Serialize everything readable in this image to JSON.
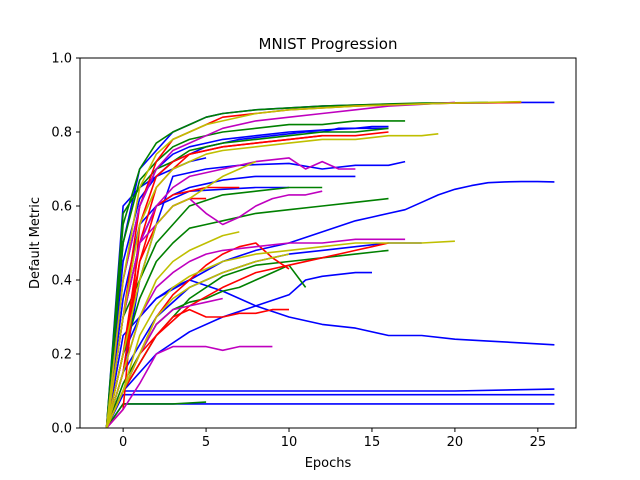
{
  "chart_data": {
    "type": "line",
    "title": "MNIST Progression",
    "xlabel": "Epochs",
    "ylabel": "Default Metric",
    "xlim": [
      -2.6,
      27.3
    ],
    "ylim": [
      0.0,
      1.0
    ],
    "xticks": [
      0,
      5,
      10,
      15,
      20,
      25
    ],
    "yticks": [
      0.0,
      0.2,
      0.4,
      0.6,
      0.8,
      1.0
    ],
    "xtick_labels": [
      "0",
      "5",
      "10",
      "15",
      "20",
      "25"
    ],
    "ytick_labels": [
      "0.0",
      "0.2",
      "0.4",
      "0.6",
      "0.8",
      "1.0"
    ],
    "grid": false,
    "legend": "none",
    "colors": {
      "b": "#0000ff",
      "g": "#008000",
      "r": "#ff0000",
      "c": "#00bfbf",
      "m": "#bf00bf",
      "y": "#bfbf00"
    },
    "series": [
      {
        "color": "b",
        "x": [
          -1,
          0,
          1,
          2,
          3,
          4,
          5,
          6,
          8,
          10,
          12,
          14,
          16,
          18,
          20,
          22,
          24,
          26
        ],
        "y": [
          0.0,
          0.5,
          0.7,
          0.75,
          0.8,
          0.82,
          0.84,
          0.85,
          0.86,
          0.865,
          0.87,
          0.873,
          0.875,
          0.877,
          0.878,
          0.879,
          0.88,
          0.88
        ]
      },
      {
        "color": "b",
        "x": [
          -1,
          0,
          1,
          2,
          3,
          5,
          7,
          10,
          12,
          14,
          16,
          17
        ],
        "y": [
          0.0,
          0.15,
          0.4,
          0.55,
          0.68,
          0.7,
          0.71,
          0.715,
          0.7,
          0.71,
          0.71,
          0.72
        ]
      },
      {
        "color": "b",
        "x": [
          -1,
          0,
          20,
          26
        ],
        "y": [
          0.0,
          0.1,
          0.1,
          0.105
        ]
      },
      {
        "color": "b",
        "x": [
          -1,
          0,
          20,
          26
        ],
        "y": [
          0.0,
          0.09,
          0.09,
          0.09
        ]
      },
      {
        "color": "b",
        "x": [
          -1,
          0,
          20,
          26
        ],
        "y": [
          0.0,
          0.065,
          0.065,
          0.065
        ]
      },
      {
        "color": "b",
        "x": [
          -1,
          0,
          2,
          4,
          6,
          8,
          10,
          12,
          14,
          16,
          18,
          20,
          22,
          24,
          26
        ],
        "y": [
          0.0,
          0.25,
          0.35,
          0.4,
          0.37,
          0.33,
          0.3,
          0.28,
          0.27,
          0.25,
          0.25,
          0.24,
          0.235,
          0.23,
          0.225
        ]
      },
      {
        "color": "b",
        "x": [
          -1,
          0,
          1,
          2,
          3,
          4,
          6,
          8,
          10,
          12,
          14,
          15,
          16,
          17,
          18,
          19,
          20,
          21,
          22,
          23,
          24,
          25,
          26
        ],
        "y": [
          0.0,
          0.2,
          0.3,
          0.35,
          0.38,
          0.4,
          0.45,
          0.48,
          0.5,
          0.53,
          0.56,
          0.57,
          0.58,
          0.59,
          0.61,
          0.63,
          0.645,
          0.655,
          0.663,
          0.665,
          0.666,
          0.666,
          0.665
        ]
      },
      {
        "color": "b",
        "x": [
          -1,
          0,
          1,
          2,
          3,
          4,
          5,
          6,
          8,
          10,
          12,
          14,
          16
        ],
        "y": [
          0.0,
          0.4,
          0.6,
          0.7,
          0.74,
          0.76,
          0.77,
          0.78,
          0.79,
          0.8,
          0.805,
          0.81,
          0.81
        ]
      },
      {
        "color": "b",
        "x": [
          -1,
          0,
          1,
          2,
          4,
          6,
          8,
          10
        ],
        "y": [
          0.0,
          0.3,
          0.5,
          0.6,
          0.64,
          0.645,
          0.65,
          0.65
        ]
      },
      {
        "color": "b",
        "x": [
          -1,
          0,
          2,
          4,
          6,
          8,
          10,
          12,
          14,
          16,
          18
        ],
        "y": [
          0.0,
          0.15,
          0.3,
          0.38,
          0.42,
          0.45,
          0.47,
          0.48,
          0.49,
          0.5,
          0.5
        ]
      },
      {
        "color": "b",
        "x": [
          -1,
          0,
          1,
          2,
          3,
          4,
          5
        ],
        "y": [
          0.0,
          0.6,
          0.65,
          0.68,
          0.7,
          0.72,
          0.73
        ]
      },
      {
        "color": "b",
        "x": [
          -1,
          0,
          2,
          4,
          6,
          8,
          10,
          11,
          12,
          14,
          15
        ],
        "y": [
          0.0,
          0.1,
          0.2,
          0.26,
          0.3,
          0.33,
          0.36,
          0.4,
          0.41,
          0.42,
          0.42
        ]
      },
      {
        "color": "b",
        "x": [
          -1,
          0,
          1,
          2,
          3,
          4,
          5,
          6,
          7,
          8,
          9,
          10,
          11,
          12,
          13,
          14,
          15,
          16
        ],
        "y": [
          0.0,
          0.45,
          0.62,
          0.68,
          0.72,
          0.74,
          0.76,
          0.77,
          0.78,
          0.785,
          0.79,
          0.795,
          0.8,
          0.8,
          0.81,
          0.81,
          0.815,
          0.815
        ]
      },
      {
        "color": "b",
        "x": [
          -1,
          0,
          1,
          2,
          3,
          4,
          5,
          6,
          8,
          10,
          12,
          14
        ],
        "y": [
          0.0,
          0.35,
          0.55,
          0.6,
          0.63,
          0.65,
          0.66,
          0.67,
          0.68,
          0.68,
          0.68,
          0.68
        ]
      },
      {
        "color": "g",
        "x": [
          -1,
          0,
          1,
          2,
          3,
          4,
          5,
          6,
          8,
          10,
          12,
          14,
          16
        ],
        "y": [
          0.0,
          0.58,
          0.65,
          0.7,
          0.72,
          0.75,
          0.76,
          0.77,
          0.78,
          0.79,
          0.8,
          0.8,
          0.81
        ]
      },
      {
        "color": "g",
        "x": [
          -1,
          0,
          1,
          2,
          3,
          4,
          5,
          6,
          8,
          10,
          12,
          14,
          16
        ],
        "y": [
          0.0,
          0.2,
          0.35,
          0.45,
          0.5,
          0.54,
          0.55,
          0.56,
          0.58,
          0.59,
          0.6,
          0.61,
          0.62
        ]
      },
      {
        "color": "g",
        "x": [
          -1,
          0,
          2,
          4,
          6,
          8,
          10,
          12,
          14,
          16
        ],
        "y": [
          0.0,
          0.1,
          0.25,
          0.35,
          0.41,
          0.44,
          0.45,
          0.46,
          0.47,
          0.48
        ]
      },
      {
        "color": "g",
        "x": [
          -1,
          0,
          1,
          2,
          3,
          4,
          6,
          8,
          10,
          12,
          14,
          16,
          17
        ],
        "y": [
          0.0,
          0.5,
          0.67,
          0.72,
          0.76,
          0.78,
          0.8,
          0.81,
          0.82,
          0.82,
          0.83,
          0.83,
          0.83
        ]
      },
      {
        "color": "g",
        "x": [
          -1,
          0,
          1,
          2,
          3,
          4,
          5,
          6,
          7,
          8,
          9,
          10,
          11
        ],
        "y": [
          0.0,
          0.12,
          0.2,
          0.28,
          0.32,
          0.34,
          0.35,
          0.37,
          0.38,
          0.4,
          0.42,
          0.44,
          0.38
        ]
      },
      {
        "color": "g",
        "x": [
          -1,
          0,
          1,
          2,
          3,
          4,
          5,
          6,
          8,
          10,
          12,
          14,
          16,
          18,
          20,
          22
        ],
        "y": [
          0.0,
          0.55,
          0.7,
          0.77,
          0.8,
          0.82,
          0.84,
          0.85,
          0.86,
          0.865,
          0.87,
          0.873,
          0.876,
          0.878,
          0.879,
          0.88
        ]
      },
      {
        "color": "g",
        "x": [
          -1,
          0,
          2,
          4,
          6,
          8,
          10,
          12
        ],
        "y": [
          0.0,
          0.3,
          0.5,
          0.6,
          0.63,
          0.64,
          0.65,
          0.65
        ]
      },
      {
        "color": "g",
        "x": [
          -1,
          0,
          3,
          5
        ],
        "y": [
          0.0,
          0.065,
          0.065,
          0.07
        ]
      },
      {
        "color": "r",
        "x": [
          -1,
          0,
          1,
          2,
          3,
          4,
          5,
          6,
          8,
          10,
          12,
          14,
          16
        ],
        "y": [
          0.0,
          0.05,
          0.55,
          0.68,
          0.72,
          0.74,
          0.75,
          0.76,
          0.77,
          0.78,
          0.79,
          0.79,
          0.8
        ]
      },
      {
        "color": "r",
        "x": [
          -1,
          0,
          1,
          2,
          3,
          4,
          5,
          6,
          7,
          8,
          9,
          10
        ],
        "y": [
          0.0,
          0.1,
          0.2,
          0.3,
          0.36,
          0.4,
          0.44,
          0.47,
          0.49,
          0.5,
          0.46,
          0.43
        ]
      },
      {
        "color": "r",
        "x": [
          -1,
          0,
          1,
          2,
          3,
          4,
          5,
          6,
          7
        ],
        "y": [
          0.0,
          0.15,
          0.45,
          0.6,
          0.63,
          0.64,
          0.65,
          0.65,
          0.65
        ]
      },
      {
        "color": "r",
        "x": [
          -1,
          0,
          1,
          2,
          3,
          4,
          5,
          6,
          7,
          8,
          9,
          10
        ],
        "y": [
          0.0,
          0.1,
          0.2,
          0.25,
          0.3,
          0.32,
          0.3,
          0.3,
          0.31,
          0.31,
          0.32,
          0.32
        ]
      },
      {
        "color": "r",
        "x": [
          -1,
          0,
          1,
          2,
          3,
          4,
          5,
          6,
          8,
          10,
          12,
          14,
          16,
          18,
          20,
          22,
          24
        ],
        "y": [
          0.0,
          0.3,
          0.6,
          0.72,
          0.78,
          0.8,
          0.82,
          0.84,
          0.85,
          0.86,
          0.865,
          0.87,
          0.873,
          0.876,
          0.878,
          0.879,
          0.88
        ]
      },
      {
        "color": "r",
        "x": [
          -1,
          0,
          2,
          4,
          6,
          8,
          10,
          12,
          13,
          14,
          15,
          16
        ],
        "y": [
          0.0,
          0.1,
          0.25,
          0.33,
          0.38,
          0.42,
          0.44,
          0.46,
          0.47,
          0.48,
          0.49,
          0.5
        ]
      },
      {
        "color": "r",
        "x": [
          -1,
          0,
          1,
          2,
          3,
          4,
          5
        ],
        "y": [
          0.0,
          0.2,
          0.45,
          0.55,
          0.6,
          0.62,
          0.62
        ]
      },
      {
        "color": "r",
        "x": [
          -1,
          0,
          1,
          2,
          3,
          4,
          6,
          8,
          10,
          12
        ],
        "y": [
          0.0,
          0.2,
          0.5,
          0.65,
          0.7,
          0.74,
          0.76,
          0.77,
          0.78,
          0.79
        ]
      },
      {
        "color": "m",
        "x": [
          -1,
          0,
          1,
          2,
          3,
          4,
          5,
          6,
          8,
          10,
          12,
          14,
          16,
          18,
          20
        ],
        "y": [
          0.0,
          0.4,
          0.6,
          0.7,
          0.75,
          0.77,
          0.79,
          0.81,
          0.83,
          0.84,
          0.85,
          0.86,
          0.87,
          0.875,
          0.88
        ]
      },
      {
        "color": "m",
        "x": [
          -1,
          0,
          1,
          2,
          3,
          4,
          5,
          6,
          7,
          8,
          9
        ],
        "y": [
          0.0,
          0.05,
          0.12,
          0.2,
          0.22,
          0.22,
          0.22,
          0.21,
          0.22,
          0.22,
          0.22
        ]
      },
      {
        "color": "m",
        "x": [
          -1,
          0,
          1,
          2,
          3,
          4,
          6,
          8,
          10,
          11,
          12,
          13,
          14
        ],
        "y": [
          0.0,
          0.3,
          0.5,
          0.6,
          0.65,
          0.68,
          0.7,
          0.72,
          0.73,
          0.7,
          0.72,
          0.7,
          0.7
        ]
      },
      {
        "color": "m",
        "x": [
          -1,
          0,
          1,
          2,
          3,
          4,
          5,
          6,
          8,
          10,
          12,
          14,
          16,
          17
        ],
        "y": [
          0.0,
          0.15,
          0.3,
          0.38,
          0.42,
          0.45,
          0.47,
          0.48,
          0.49,
          0.5,
          0.5,
          0.51,
          0.51,
          0.51
        ]
      },
      {
        "color": "m",
        "x": [
          -1,
          0,
          1,
          2,
          3,
          4,
          5,
          6,
          7,
          8,
          9,
          10,
          11,
          12
        ],
        "y": [
          0.0,
          0.3,
          0.5,
          0.55,
          0.6,
          0.62,
          0.58,
          0.55,
          0.57,
          0.6,
          0.62,
          0.63,
          0.63,
          0.64
        ]
      },
      {
        "color": "m",
        "x": [
          -1,
          0,
          1,
          2,
          3,
          4,
          5,
          6
        ],
        "y": [
          0.0,
          0.1,
          0.2,
          0.28,
          0.32,
          0.33,
          0.34,
          0.35
        ]
      },
      {
        "color": "y",
        "x": [
          -1,
          0,
          1,
          2,
          3,
          4,
          5,
          6,
          8,
          10,
          12,
          14,
          16,
          18,
          20,
          22,
          24
        ],
        "y": [
          0.0,
          0.4,
          0.65,
          0.74,
          0.78,
          0.8,
          0.82,
          0.83,
          0.85,
          0.86,
          0.865,
          0.87,
          0.873,
          0.876,
          0.878,
          0.88,
          0.882
        ]
      },
      {
        "color": "y",
        "x": [
          -1,
          0,
          1,
          2,
          3,
          4,
          5,
          6,
          8,
          10,
          12,
          14,
          16,
          18,
          20
        ],
        "y": [
          0.0,
          0.1,
          0.25,
          0.33,
          0.38,
          0.41,
          0.43,
          0.45,
          0.47,
          0.48,
          0.49,
          0.5,
          0.5,
          0.5,
          0.505
        ]
      },
      {
        "color": "y",
        "x": [
          -1,
          0,
          1,
          2,
          3,
          4,
          5,
          6,
          8,
          10,
          12,
          14,
          16,
          18,
          19
        ],
        "y": [
          0.0,
          0.3,
          0.55,
          0.65,
          0.7,
          0.72,
          0.74,
          0.75,
          0.76,
          0.77,
          0.78,
          0.78,
          0.79,
          0.79,
          0.795
        ]
      },
      {
        "color": "y",
        "x": [
          -1,
          0,
          1,
          2,
          3,
          4,
          5,
          6,
          8,
          10
        ],
        "y": [
          0.0,
          0.1,
          0.2,
          0.3,
          0.35,
          0.38,
          0.4,
          0.42,
          0.45,
          0.47
        ]
      },
      {
        "color": "y",
        "x": [
          -1,
          0,
          1,
          2,
          3,
          4,
          5,
          6,
          7,
          8
        ],
        "y": [
          0.0,
          0.2,
          0.4,
          0.55,
          0.6,
          0.62,
          0.65,
          0.68,
          0.7,
          0.72
        ]
      },
      {
        "color": "y",
        "x": [
          -1,
          0,
          1,
          2,
          3,
          4,
          5,
          6,
          7
        ],
        "y": [
          0.0,
          0.15,
          0.3,
          0.4,
          0.45,
          0.48,
          0.5,
          0.52,
          0.53
        ]
      }
    ]
  }
}
